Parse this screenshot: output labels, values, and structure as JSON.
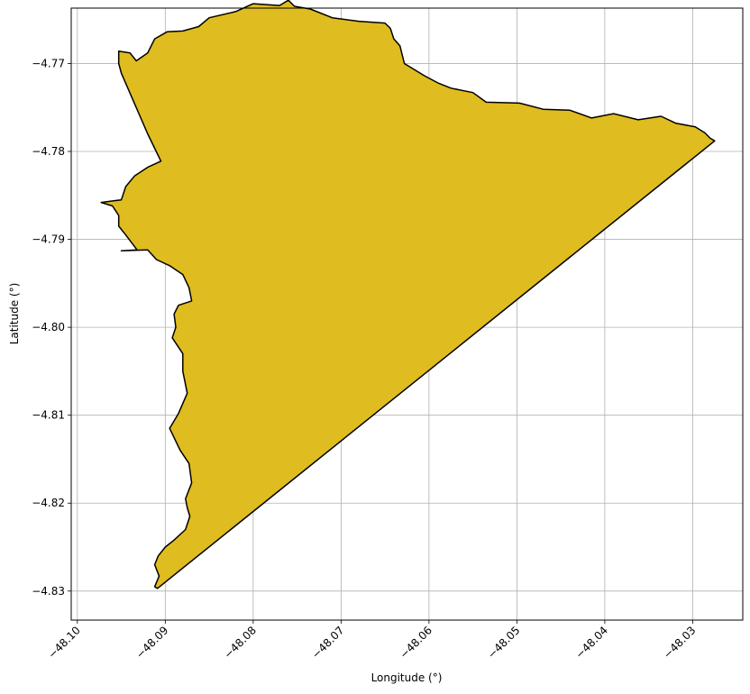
{
  "chart_data": {
    "type": "map",
    "xlabel": "Longitude (°)",
    "ylabel": "Latitude (°)",
    "xlim": [
      -48.1007,
      -48.0243
    ],
    "ylim": [
      -4.8333,
      -4.7637
    ],
    "xticks": [
      -48.1,
      -48.09,
      -48.08,
      -48.07,
      -48.06,
      -48.05,
      -48.04,
      -48.03
    ],
    "yticks": [
      -4.83,
      -4.82,
      -4.81,
      -4.8,
      -4.79,
      -4.78,
      -4.77
    ],
    "xtick_labels": [
      "−48.10",
      "−48.09",
      "−48.08",
      "−48.07",
      "−48.06",
      "−48.05",
      "−48.04",
      "−48.03"
    ],
    "ytick_labels": [
      "−4.83",
      "−4.82",
      "−4.81",
      "−4.80",
      "−4.79",
      "−4.78",
      "−4.77"
    ],
    "grid": true,
    "region": {
      "fill_color": "#dfbc1f",
      "edge_color": "#000000",
      "boundary": [
        [
          -48.0909,
          -4.8297
        ],
        [
          -48.0275,
          -4.7788
        ],
        [
          -48.028,
          -4.7785
        ],
        [
          -48.0286,
          -4.7779
        ],
        [
          -48.0297,
          -4.7772
        ],
        [
          -48.0319,
          -4.7768
        ],
        [
          -48.0336,
          -4.776
        ],
        [
          -48.0362,
          -4.7764
        ],
        [
          -48.039,
          -4.7757
        ],
        [
          -48.0415,
          -4.7762
        ],
        [
          -48.044,
          -4.7753
        ],
        [
          -48.047,
          -4.7752
        ],
        [
          -48.0497,
          -4.7745
        ],
        [
          -48.0535,
          -4.7744
        ],
        [
          -48.055,
          -4.7733
        ],
        [
          -48.0575,
          -4.7728
        ],
        [
          -48.059,
          -4.7722
        ],
        [
          -48.0605,
          -4.7714
        ],
        [
          -48.0628,
          -4.77
        ],
        [
          -48.0633,
          -4.768
        ],
        [
          -48.064,
          -4.7672
        ],
        [
          -48.0644,
          -4.766
        ],
        [
          -48.065,
          -4.7654
        ],
        [
          -48.068,
          -4.7652
        ],
        [
          -48.071,
          -4.7648
        ],
        [
          -48.0735,
          -4.7638
        ],
        [
          -48.0753,
          -4.7635
        ],
        [
          -48.076,
          -4.7628
        ],
        [
          -48.077,
          -4.7634
        ],
        [
          -48.08,
          -4.7632
        ],
        [
          -48.082,
          -4.7641
        ],
        [
          -48.085,
          -4.7648
        ],
        [
          -48.0862,
          -4.7658
        ],
        [
          -48.088,
          -4.7663
        ],
        [
          -48.0898,
          -4.7664
        ],
        [
          -48.0912,
          -4.7672
        ],
        [
          -48.092,
          -4.7688
        ],
        [
          -48.0933,
          -4.7697
        ],
        [
          -48.094,
          -4.7688
        ],
        [
          -48.0953,
          -4.7686
        ],
        [
          -48.0953,
          -4.77
        ],
        [
          -48.095,
          -4.7711
        ],
        [
          -48.094,
          -4.7734
        ],
        [
          -48.092,
          -4.778
        ],
        [
          -48.0905,
          -4.7811
        ],
        [
          -48.092,
          -4.7818
        ],
        [
          -48.0935,
          -4.7828
        ],
        [
          -48.0945,
          -4.784
        ],
        [
          -48.095,
          -4.7855
        ],
        [
          -48.0973,
          -4.7858
        ],
        [
          -48.096,
          -4.7862
        ],
        [
          -48.0953,
          -4.7873
        ],
        [
          -48.0953,
          -4.7885
        ],
        [
          -48.0945,
          -4.7895
        ],
        [
          -48.0932,
          -4.7912
        ],
        [
          -48.095,
          -4.7913
        ],
        [
          -48.092,
          -4.7912
        ],
        [
          -48.091,
          -4.7923
        ],
        [
          -48.0895,
          -4.793
        ],
        [
          -48.088,
          -4.794
        ],
        [
          -48.0873,
          -4.7955
        ],
        [
          -48.087,
          -4.797
        ],
        [
          -48.0885,
          -4.7975
        ],
        [
          -48.089,
          -4.7985
        ],
        [
          -48.0888,
          -4.8
        ],
        [
          -48.0892,
          -4.8012
        ],
        [
          -48.088,
          -4.803
        ],
        [
          -48.088,
          -4.805
        ],
        [
          -48.0875,
          -4.8075
        ],
        [
          -48.0885,
          -4.8098
        ],
        [
          -48.0895,
          -4.8115
        ],
        [
          -48.0883,
          -4.814
        ],
        [
          -48.0873,
          -4.8155
        ],
        [
          -48.087,
          -4.8177
        ],
        [
          -48.0877,
          -4.8195
        ],
        [
          -48.0875,
          -4.8205
        ],
        [
          -48.0872,
          -4.8215
        ],
        [
          -48.0877,
          -4.823
        ],
        [
          -48.089,
          -4.8242
        ],
        [
          -48.09,
          -4.825
        ],
        [
          -48.0908,
          -4.826
        ],
        [
          -48.0912,
          -4.827
        ],
        [
          -48.0907,
          -4.8283
        ],
        [
          -48.0912,
          -4.8295
        ]
      ]
    }
  }
}
